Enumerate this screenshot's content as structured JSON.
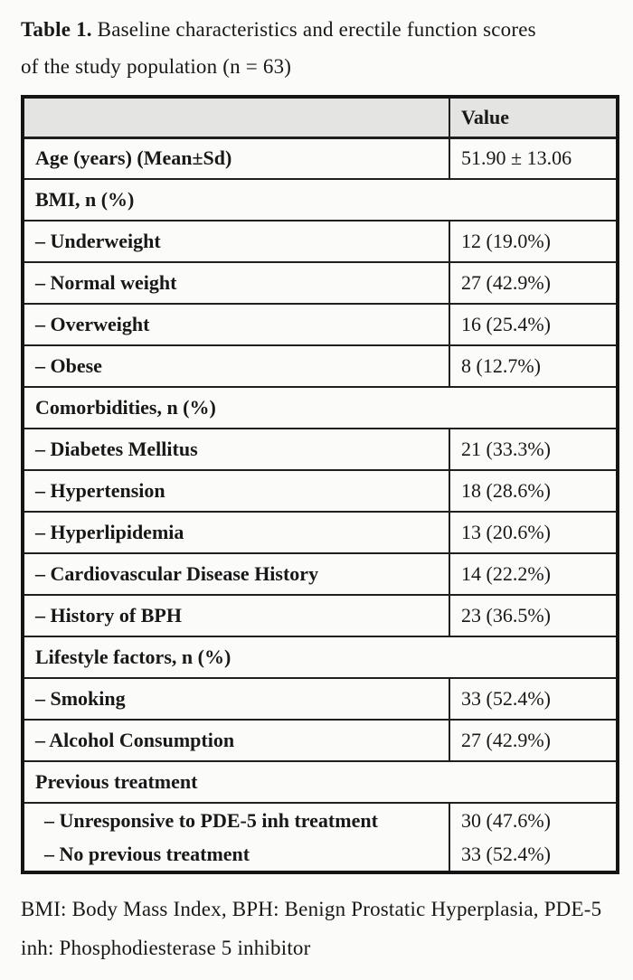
{
  "caption": {
    "prefix": "Table 1.",
    "line1_rest": " Baseline characteristics and erectile function scores",
    "line2": "of the study population (n = 63)"
  },
  "table": {
    "value_header": "Value",
    "rows": [
      {
        "type": "data",
        "label": "Age (years) (Mean±Sd)",
        "value": "51.90 ± 13.06"
      },
      {
        "type": "section",
        "label": "BMI, n (%)"
      },
      {
        "type": "data",
        "label": "– Underweight",
        "value": "12 (19.0%)"
      },
      {
        "type": "data",
        "label": "– Normal weight",
        "value": "27 (42.9%)"
      },
      {
        "type": "data",
        "label": "– Overweight",
        "value": "16 (25.4%)"
      },
      {
        "type": "data",
        "label": "– Obese",
        "value": "8 (12.7%)"
      },
      {
        "type": "section",
        "label": "Comorbidities, n (%)"
      },
      {
        "type": "data",
        "label": "– Diabetes Mellitus",
        "value": "21 (33.3%)"
      },
      {
        "type": "data",
        "label": "– Hypertension",
        "value": "18 (28.6%)"
      },
      {
        "type": "data",
        "label": "– Hyperlipidemia",
        "value": "13 (20.6%)"
      },
      {
        "type": "data",
        "label": "– Cardiovascular Disease History",
        "value": "14 (22.2%)"
      },
      {
        "type": "data",
        "label": "– History of BPH",
        "value": "23 (36.5%)"
      },
      {
        "type": "section",
        "label": "Lifestyle factors, n (%)"
      },
      {
        "type": "data",
        "label": "– Smoking",
        "value": "33 (52.4%)"
      },
      {
        "type": "data",
        "label": "– Alcohol Consumption",
        "value": "27 (42.9%)"
      },
      {
        "type": "section",
        "label": "Previous treatment"
      },
      {
        "type": "multi",
        "items": [
          {
            "label": "– Unresponsive to PDE-5 inh treatment",
            "value": "30 (47.6%)"
          },
          {
            "label": "– No previous treatment",
            "value": "33 (52.4%)"
          }
        ]
      }
    ]
  },
  "footnote": {
    "lines": [
      "BMI: Body Mass Index, BPH: Benign Prostatic Hyperplasia, PDE-5",
      "inh: Phosphodiesterase 5 inhibitor"
    ]
  },
  "colors": {
    "header_background": "#e4e4e2",
    "border": "#1f1f1f",
    "text": "#181818",
    "page_background": "#fbfbfa"
  }
}
